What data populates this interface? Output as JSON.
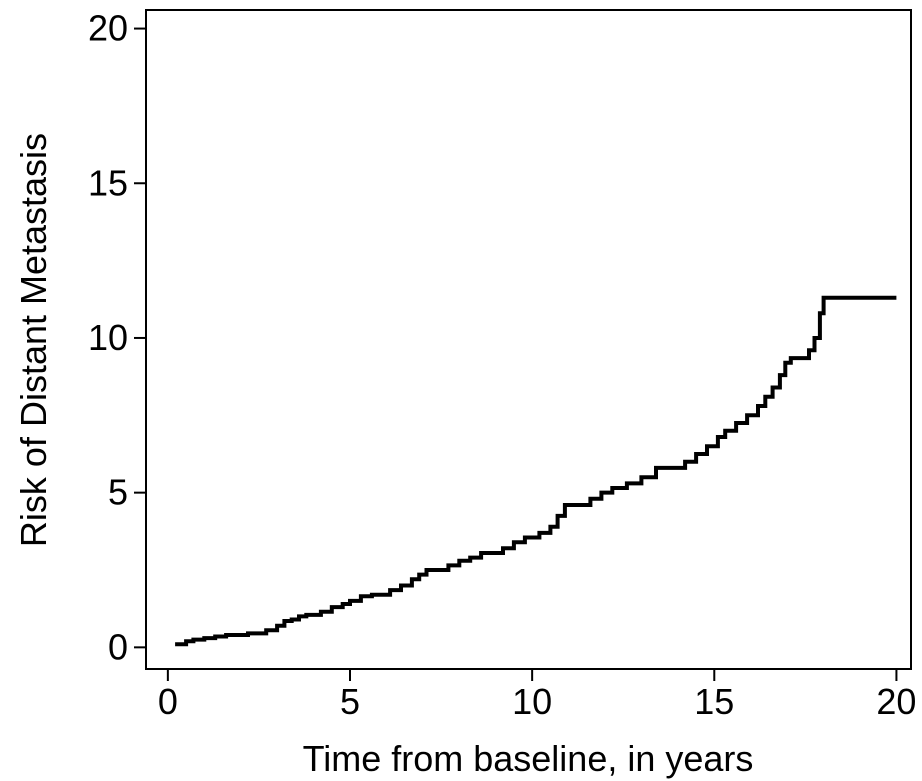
{
  "chart_data": {
    "type": "line",
    "title": "",
    "xlabel": "Time from baseline, in years",
    "ylabel": "Risk of Distant Metastasis",
    "xlim": [
      -0.6,
      20.4
    ],
    "ylim": [
      -0.7,
      20.6
    ],
    "xticks": [
      0,
      5,
      10,
      15,
      20
    ],
    "yticks": [
      0,
      5,
      10,
      15,
      20
    ],
    "xtick_labels": [
      "0",
      "5",
      "10",
      "15",
      "20"
    ],
    "ytick_labels": [
      "0",
      "5",
      "10",
      "15",
      "20"
    ],
    "grid": false,
    "legend": "none",
    "line_color": "#000000",
    "step": true,
    "series": [
      {
        "x": [
          0.2,
          0.5,
          0.7,
          1.0,
          1.3,
          1.6,
          2.2,
          2.7,
          3.0,
          3.2,
          3.4,
          3.6,
          3.8,
          4.2,
          4.5,
          4.8,
          5.0,
          5.3,
          5.6,
          6.1,
          6.4,
          6.7,
          6.9,
          7.1,
          7.7,
          8.0,
          8.3,
          8.6,
          9.2,
          9.5,
          9.8,
          10.2,
          10.5,
          10.7,
          10.9,
          11.6,
          11.9,
          12.2,
          12.6,
          13.0,
          13.4,
          14.2,
          14.5,
          14.8,
          15.1,
          15.3,
          15.6,
          15.9,
          16.2,
          16.4,
          16.6,
          16.8,
          16.95,
          17.1,
          17.6,
          17.75,
          17.9,
          18.0,
          18.1,
          20.0
        ],
        "y": [
          0.1,
          0.2,
          0.25,
          0.3,
          0.35,
          0.4,
          0.45,
          0.55,
          0.7,
          0.85,
          0.9,
          1.0,
          1.05,
          1.15,
          1.3,
          1.4,
          1.5,
          1.65,
          1.7,
          1.85,
          2.0,
          2.2,
          2.35,
          2.5,
          2.65,
          2.8,
          2.9,
          3.05,
          3.2,
          3.4,
          3.55,
          3.7,
          3.9,
          4.25,
          4.6,
          4.8,
          5.0,
          5.15,
          5.3,
          5.5,
          5.8,
          6.0,
          6.25,
          6.5,
          6.8,
          7.0,
          7.25,
          7.5,
          7.8,
          8.1,
          8.4,
          8.8,
          9.2,
          9.35,
          9.6,
          10.0,
          10.8,
          11.3,
          11.3,
          11.3
        ]
      }
    ]
  }
}
